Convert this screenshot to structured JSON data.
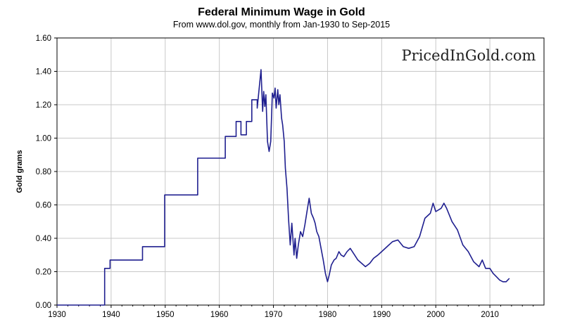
{
  "chart_data": {
    "type": "line",
    "title": "Federal Minimum Wage in Gold",
    "subtitle": "From www.dol.gov, monthly from Jan-1930 to Sep-2015",
    "watermark": "PricedInGold.com",
    "xlabel": "",
    "ylabel": "Gold grams",
    "xlim": [
      1930,
      2020
    ],
    "ylim": [
      0,
      1.6
    ],
    "x_ticks": [
      "1930",
      "1940",
      "1950",
      "1960",
      "1970",
      "1980",
      "1990",
      "2000",
      "2010"
    ],
    "y_ticks": [
      "0.00",
      "0.20",
      "0.40",
      "0.60",
      "0.80",
      "1.00",
      "1.20",
      "1.40",
      "1.60"
    ],
    "grid": true,
    "line_color": "#1f1f8f",
    "series": [
      {
        "name": "Federal Minimum Wage in Gold",
        "x": [
          1930,
          1938.8,
          1938.8,
          1939.8,
          1939.8,
          1945.8,
          1945.8,
          1949.9,
          1949.9,
          1956.0,
          1956.0,
          1961.1,
          1961.1,
          1963.1,
          1963.1,
          1964.0,
          1964.0,
          1965.0,
          1965.0,
          1966.0,
          1966.0,
          1967.0,
          1967.0,
          1967.7,
          1968.0,
          1968.2,
          1968.4,
          1968.6,
          1968.9,
          1969.2,
          1969.5,
          1969.8,
          1970.1,
          1970.3,
          1970.5,
          1970.8,
          1971.0,
          1971.2,
          1971.5,
          1971.7,
          1972.0,
          1972.2,
          1972.5,
          1972.8,
          1973.1,
          1973.4,
          1973.8,
          1974.0,
          1974.3,
          1974.6,
          1975.0,
          1975.4,
          1975.8,
          1976.2,
          1976.6,
          1977.0,
          1977.4,
          1977.7,
          1978.0,
          1978.4,
          1978.8,
          1979.2,
          1979.6,
          1980.0,
          1980.3,
          1980.7,
          1981.2,
          1981.6,
          1982.1,
          1982.5,
          1983.0,
          1983.6,
          1984.2,
          1985.0,
          1985.6,
          1986.3,
          1987.0,
          1987.8,
          1988.5,
          1989.3,
          1990.0,
          1991.0,
          1992.0,
          1993.0,
          1994.0,
          1995.0,
          1996.0,
          1997.0,
          1998.0,
          1999.0,
          1999.5,
          2000.0,
          2001.0,
          2001.5,
          2002.0,
          2003.0,
          2004.0,
          2005.0,
          2006.0,
          2007.0,
          2008.0,
          2008.6,
          2009.2,
          2010.0,
          2010.6,
          2011.2,
          2011.8,
          2012.4,
          2013.0,
          2013.6
        ],
        "y": [
          0,
          0,
          0.22,
          0.22,
          0.27,
          0.27,
          0.35,
          0.35,
          0.66,
          0.66,
          0.88,
          0.88,
          1.01,
          1.01,
          1.1,
          1.1,
          1.02,
          1.02,
          1.1,
          1.1,
          1.23,
          1.23,
          1.18,
          1.41,
          1.16,
          1.28,
          1.19,
          1.26,
          0.98,
          0.92,
          0.98,
          1.27,
          1.24,
          1.3,
          1.18,
          1.29,
          1.2,
          1.26,
          1.12,
          1.08,
          0.98,
          0.82,
          0.7,
          0.51,
          0.36,
          0.49,
          0.3,
          0.4,
          0.28,
          0.36,
          0.44,
          0.41,
          0.48,
          0.56,
          0.64,
          0.55,
          0.52,
          0.49,
          0.44,
          0.41,
          0.34,
          0.27,
          0.19,
          0.14,
          0.18,
          0.24,
          0.27,
          0.28,
          0.32,
          0.3,
          0.29,
          0.32,
          0.34,
          0.3,
          0.27,
          0.25,
          0.23,
          0.25,
          0.28,
          0.3,
          0.32,
          0.35,
          0.38,
          0.39,
          0.35,
          0.34,
          0.35,
          0.41,
          0.52,
          0.55,
          0.61,
          0.56,
          0.58,
          0.61,
          0.58,
          0.5,
          0.45,
          0.36,
          0.32,
          0.26,
          0.23,
          0.27,
          0.22,
          0.22,
          0.19,
          0.17,
          0.15,
          0.14,
          0.14,
          0.16
        ]
      }
    ]
  }
}
